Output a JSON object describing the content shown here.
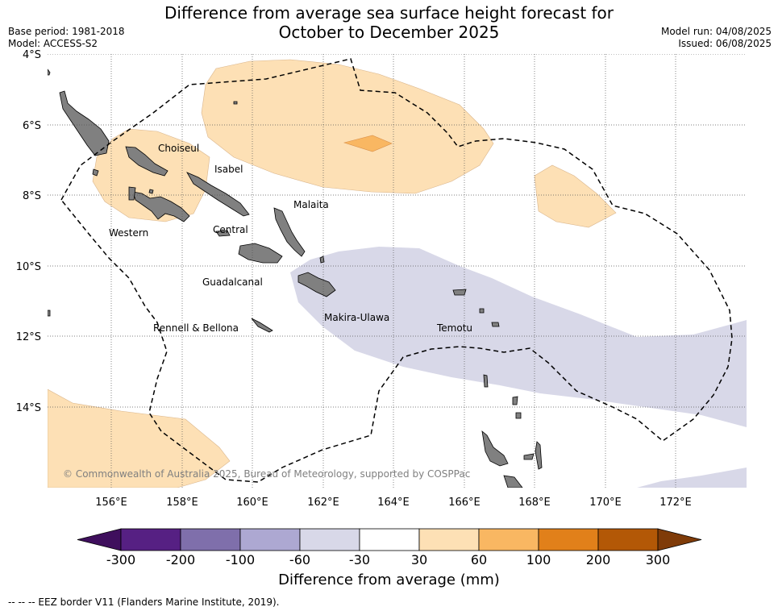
{
  "title": {
    "line1": "Difference from average sea surface height forecast for",
    "line2": "October to December 2025"
  },
  "meta": {
    "base_period": "Base period: 1981-2018",
    "model": "Model: ACCESS-S2",
    "model_run": "Model run: 04/08/2025",
    "issued": "Issued: 06/08/2025"
  },
  "map": {
    "lat_ticks": [
      "4°S",
      "6°S",
      "8°S",
      "10°S",
      "12°S",
      "14°S"
    ],
    "lon_ticks": [
      "156°E",
      "158°E",
      "160°E",
      "162°E",
      "164°E",
      "166°E",
      "168°E",
      "170°E",
      "172°E"
    ],
    "province_labels": [
      "Choiseul",
      "Isabel",
      "Malaita",
      "Western",
      "Central",
      "Guadalcanal",
      "Makira-Ulawa",
      "Rennell & Bellona",
      "Temotu"
    ],
    "copyright": "© Commonwealth of Australia 2025, Bureau of Meteorology, supported by COSPPac",
    "land_color": "#808080",
    "eez_style": "dashed black"
  },
  "colorbar": {
    "ticks": [
      "-300",
      "-200",
      "-100",
      "-60",
      "-30",
      "30",
      "60",
      "100",
      "200",
      "300"
    ],
    "colors": [
      "#3f0f5d",
      "#562083",
      "#7f6fab",
      "#ada8d2",
      "#d8d8e8",
      "#ffffff",
      "#fde0b5",
      "#f9b762",
      "#e1801a",
      "#b35806",
      "#7f3b08"
    ],
    "title": "Difference from average (mm)"
  },
  "footer": "--  --  -- EEZ border V11 (Flanders Marine Institute, 2019)."
}
